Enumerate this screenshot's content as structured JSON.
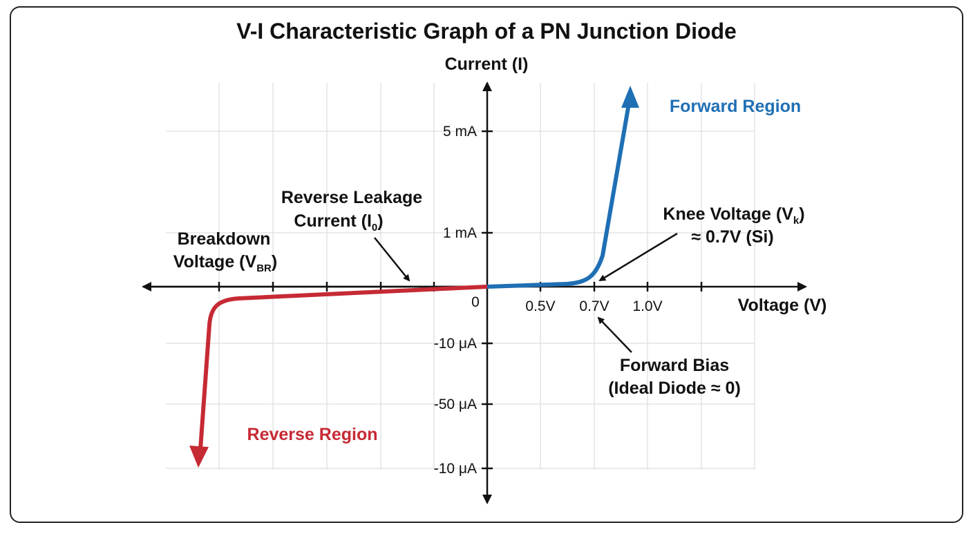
{
  "title": "V-I Characteristic Graph of a PN Junction Diode",
  "axes": {
    "y_label": "Current (I)",
    "x_label": "Voltage (V)",
    "origin": "0",
    "y_tick_labels": [
      "5 mA",
      "1 mA",
      "-10 μA",
      "-50 μA",
      "-10 μA"
    ],
    "x_tick_labels": [
      "0.5V",
      "0.7V",
      "1.0V"
    ]
  },
  "regions": {
    "forward": "Forward Region",
    "reverse": "Reverse Region"
  },
  "annotations": {
    "leakage": {
      "line1": "Reverse Leakage",
      "line2": [
        "Current (I",
        "0",
        ")"
      ]
    },
    "breakdown": {
      "line1": "Breakdown",
      "line2": [
        "Voltage (V",
        "BR",
        ")"
      ]
    },
    "knee": {
      "line1": [
        "Knee Voltage (V",
        "k",
        ")"
      ],
      "line2": "≈ 0.7V (Si)"
    },
    "forward_bias": {
      "line1": "Forward Bias",
      "line2": "(Ideal Diode ≈ 0)"
    }
  }
}
